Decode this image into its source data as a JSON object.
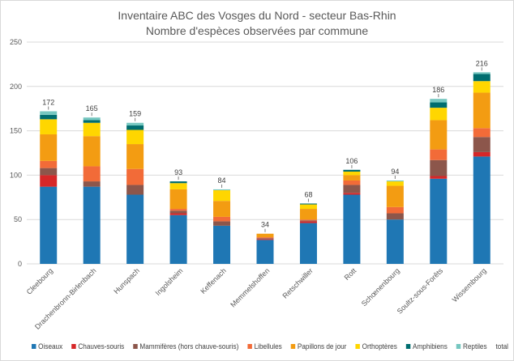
{
  "chart_data": {
    "type": "bar",
    "stacked": true,
    "title": [
      "Inventaire ABC des Vosges du Nord - secteur Bas-Rhin",
      "Nombre d'espèces observées par commune"
    ],
    "categories": [
      "Cleebourg",
      "Drachenbronn-Birlenbach",
      "Hunspach",
      "Ingolsheim",
      "Keffenach",
      "Memmelshoffen",
      "Retschwiller",
      "Rott",
      "Schœnenbourg",
      "Soultz-sous-Forêts",
      "Wissembourg"
    ],
    "series": [
      {
        "name": "Oiseaux",
        "color": "#1f77b4",
        "values": [
          87,
          87,
          78,
          55,
          43,
          27,
          46,
          78,
          50,
          96,
          121
        ]
      },
      {
        "name": "Chauves-souris",
        "color": "#d62728",
        "values": [
          13,
          0,
          0,
          2,
          0,
          1,
          2,
          2,
          0,
          3,
          5
        ]
      },
      {
        "name": "Mammifères (hors chauve-souris)",
        "color": "#8c564b",
        "values": [
          8,
          6,
          11,
          3,
          5,
          1,
          1,
          9,
          7,
          18,
          17
        ]
      },
      {
        "name": "Libellules",
        "color": "#f26b38",
        "values": [
          8,
          17,
          18,
          2,
          5,
          1,
          1,
          5,
          7,
          12,
          10
        ]
      },
      {
        "name": "Papillons de jour",
        "color": "#f39c12",
        "values": [
          30,
          34,
          28,
          22,
          18,
          4,
          12,
          6,
          24,
          33,
          40
        ]
      },
      {
        "name": "Orthoptères",
        "color": "#ffd600",
        "values": [
          17,
          15,
          16,
          7,
          12,
          0,
          5,
          4,
          5,
          14,
          13
        ]
      },
      {
        "name": "Amphibiens",
        "color": "#006d6f",
        "values": [
          5,
          3,
          5,
          2,
          0,
          0,
          1,
          2,
          0,
          6,
          8
        ]
      },
      {
        "name": "Reptiles",
        "color": "#76c7c0",
        "values": [
          4,
          3,
          3,
          0,
          1,
          0,
          0,
          0,
          1,
          4,
          2
        ]
      }
    ],
    "totals": {
      "name": "total",
      "values": [
        172,
        165,
        159,
        93,
        84,
        34,
        68,
        106,
        94,
        186,
        216
      ]
    },
    "ylim": [
      0,
      250
    ],
    "yticks": [
      0,
      50,
      100,
      150,
      200,
      250
    ],
    "grid": true,
    "legend": "bottom"
  }
}
